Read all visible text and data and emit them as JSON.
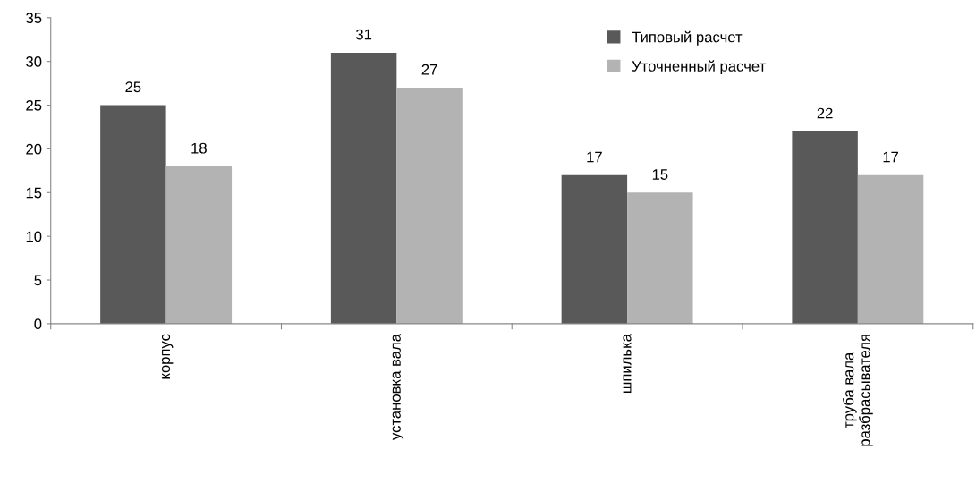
{
  "chart_data": {
    "type": "bar",
    "categories": [
      "корпус",
      "установка вала",
      "шпилька",
      "труба вала\nразбрасывателя"
    ],
    "series": [
      {
        "name": "Типовый расчет",
        "color": "#595959",
        "values": [
          25,
          31,
          17,
          22
        ]
      },
      {
        "name": "Уточненный расчет",
        "color": "#b3b3b3",
        "values": [
          18,
          27,
          15,
          17
        ]
      }
    ],
    "ylim": [
      0,
      35
    ],
    "yticks": [
      0,
      5,
      10,
      15,
      20,
      25,
      30,
      35
    ],
    "data_labels": true,
    "grid": false,
    "legend": "top right"
  }
}
